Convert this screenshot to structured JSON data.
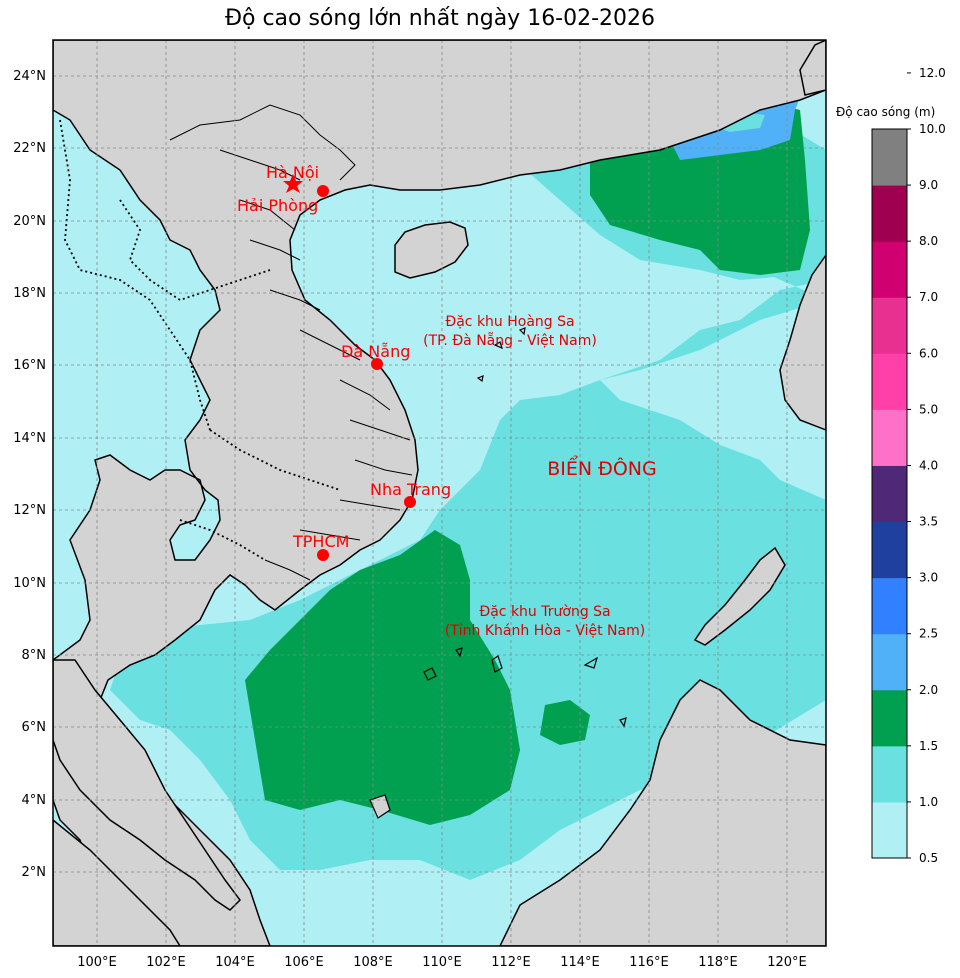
{
  "title": "Độ cao sóng lớn nhất ngày 16-02-2026",
  "colorbar": {
    "title": "Độ cao sóng (m)",
    "ticks": [
      "0.5",
      "1.0",
      "1.5",
      "2.0",
      "2.5",
      "3.0",
      "3.5",
      "4.0",
      "5.0",
      "6.0",
      "7.0",
      "8.0",
      "9.0",
      "10.0",
      "12.0"
    ],
    "colors": [
      "#b0f0f5",
      "#6ae0e0",
      "#00a050",
      "#50b0f8",
      "#3080ff",
      "#2040a0",
      "#502878",
      "#ff70c8",
      "#ff40a8",
      "#e83090",
      "#d00070",
      "#a00050",
      "#808080"
    ]
  },
  "axes": {
    "lat_labels": [
      "24°N",
      "22°N",
      "20°N",
      "18°N",
      "16°N",
      "14°N",
      "12°N",
      "10°N",
      "8°N",
      "6°N",
      "4°N",
      "2°N"
    ],
    "lon_labels": [
      "100°E",
      "102°E",
      "104°E",
      "106°E",
      "108°E",
      "110°E",
      "112°E",
      "114°E",
      "116°E",
      "118°E",
      "120°E"
    ]
  },
  "cities": [
    {
      "name": "Hà Nội",
      "marker": "star"
    },
    {
      "name": "Hải Phòng",
      "marker": "dot"
    },
    {
      "name": "Đà Nẵng",
      "marker": "dot"
    },
    {
      "name": "Nha Trang",
      "marker": "dot"
    },
    {
      "name": "TPHCM",
      "marker": "dot"
    }
  ],
  "areas": {
    "hoang_sa_line1": "Đặc khu Hoàng Sa",
    "hoang_sa_line2": "(TP. Đà Nẵng - Việt Nam)",
    "sea_name": "BIỂN ĐÔNG",
    "truong_sa_line1": "Đặc khu Trường Sa",
    "truong_sa_line2": "(Tỉnh Khánh Hòa - Việt Nam)"
  },
  "colors": {
    "land": "#d3d3d3",
    "city": "#ff0000",
    "label": "#e00000"
  }
}
